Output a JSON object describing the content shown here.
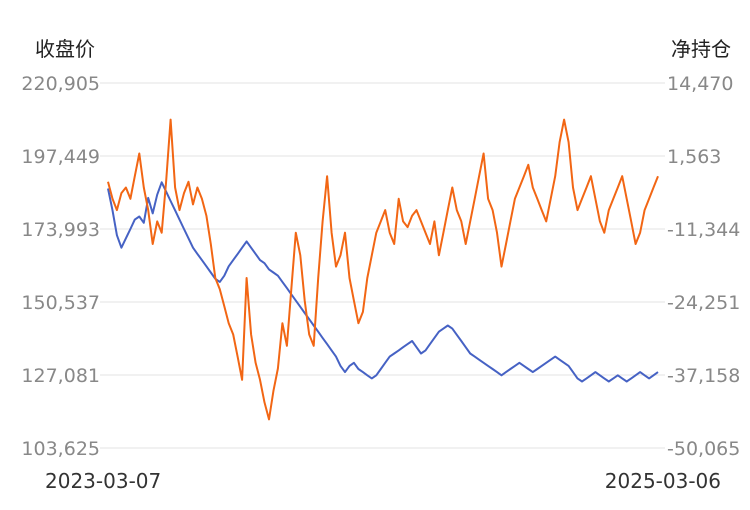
{
  "chart_data": {
    "type": "line",
    "left_axis_title": "收盘价",
    "right_axis_title": "净持仓",
    "x_start_label": "2023-03-07",
    "x_end_label": "2025-03-06",
    "left_ticks": [
      "220,905",
      "197,449",
      "173,993",
      "150,537",
      "127,081",
      "103,625"
    ],
    "right_ticks": [
      "14,470",
      "1,563",
      "-11,344",
      "-24,251",
      "-37,158",
      "-50,065"
    ],
    "left_range": [
      103625,
      220905
    ],
    "right_range": [
      -50065,
      14470
    ],
    "grid": true,
    "series": [
      {
        "axis": "left",
        "color": "#4662c4",
        "values": [
          187000,
          180000,
          172000,
          168000,
          171000,
          174000,
          177000,
          178000,
          176000,
          184000,
          179000,
          185000,
          189000,
          186000,
          183000,
          180000,
          177000,
          174000,
          171000,
          168000,
          166000,
          164000,
          162000,
          160000,
          158000,
          157000,
          159000,
          162000,
          164000,
          166000,
          168000,
          170000,
          168000,
          166000,
          164000,
          163000,
          161000,
          160000,
          159000,
          157000,
          155000,
          153000,
          151000,
          149000,
          147000,
          145000,
          143000,
          141000,
          139000,
          137000,
          135000,
          133000,
          130000,
          128000,
          130000,
          131000,
          129000,
          128000,
          127000,
          126000,
          127000,
          129000,
          131000,
          133000,
          134000,
          135000,
          136000,
          137000,
          138000,
          136000,
          134000,
          135000,
          137000,
          139000,
          141000,
          142000,
          143000,
          142000,
          140000,
          138000,
          136000,
          134000,
          133000,
          132000,
          131000,
          130000,
          129000,
          128000,
          127000,
          128000,
          129000,
          130000,
          131000,
          130000,
          129000,
          128000,
          129000,
          130000,
          131000,
          132000,
          133000,
          132000,
          131000,
          130000,
          128000,
          126000,
          125000,
          126000,
          127000,
          128000,
          127000,
          126000,
          125000,
          126000,
          127000,
          126000,
          125000,
          126000,
          127000,
          128000,
          127000,
          126000,
          127000,
          128000
        ]
      },
      {
        "axis": "right",
        "color": "#f26614",
        "values": [
          -3000,
          -6000,
          -8000,
          -5000,
          -4000,
          -6000,
          -2000,
          2000,
          -4000,
          -8000,
          -14000,
          -10000,
          -12000,
          -3000,
          8000,
          -4000,
          -8000,
          -5000,
          -3000,
          -7000,
          -4000,
          -6000,
          -9000,
          -14000,
          -20000,
          -22000,
          -25000,
          -28000,
          -30000,
          -34000,
          -38000,
          -20000,
          -30000,
          -35000,
          -38000,
          -42000,
          -45000,
          -40000,
          -36000,
          -28000,
          -32000,
          -22000,
          -12000,
          -16000,
          -24000,
          -30000,
          -32000,
          -20000,
          -10000,
          -2000,
          -12000,
          -18000,
          -16000,
          -12000,
          -20000,
          -24000,
          -28000,
          -26000,
          -20000,
          -16000,
          -12000,
          -10000,
          -8000,
          -12000,
          -14000,
          -6000,
          -10000,
          -11000,
          -9000,
          -8000,
          -10000,
          -12000,
          -14000,
          -10000,
          -16000,
          -12000,
          -8000,
          -4000,
          -8000,
          -10000,
          -14000,
          -10000,
          -6000,
          -2000,
          2000,
          -6000,
          -8000,
          -12000,
          -18000,
          -14000,
          -10000,
          -6000,
          -4000,
          -2000,
          0,
          -4000,
          -6000,
          -8000,
          -10000,
          -6000,
          -2000,
          4000,
          8000,
          4000,
          -4000,
          -8000,
          -6000,
          -4000,
          -2000,
          -6000,
          -10000,
          -12000,
          -8000,
          -6000,
          -4000,
          -2000,
          -6000,
          -10000,
          -14000,
          -12000,
          -8000,
          -6000,
          -4000,
          -2000
        ]
      }
    ]
  }
}
